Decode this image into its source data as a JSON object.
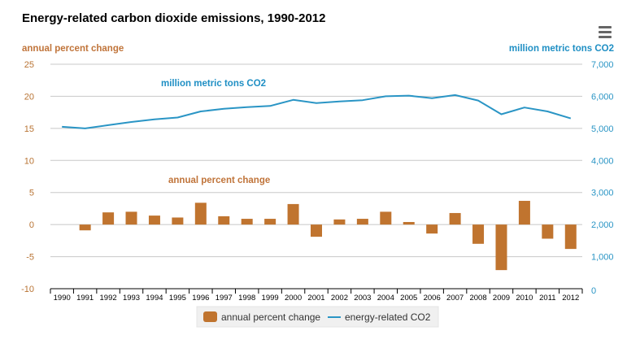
{
  "chart_data": {
    "type": "bar+line",
    "title": "Energy-related carbon dioxide emissions, 1990-2012",
    "categories": [
      "1990",
      "1991",
      "1992",
      "1993",
      "1994",
      "1995",
      "1996",
      "1997",
      "1998",
      "1999",
      "2000",
      "2001",
      "2002",
      "2003",
      "2004",
      "2005",
      "2006",
      "2007",
      "2008",
      "2009",
      "2010",
      "2011",
      "2012"
    ],
    "left_axis": {
      "label": "annual percent change",
      "ylim": [
        -10,
        25
      ],
      "ticks": [
        "-10",
        "-5",
        "0",
        "5",
        "10",
        "15",
        "20",
        "25"
      ]
    },
    "right_axis": {
      "label": "million metric tons CO2",
      "ylim": [
        0,
        7000
      ],
      "ticks": [
        "0",
        "1,000",
        "2,000",
        "3,000",
        "4,000",
        "5,000",
        "6,000",
        "7,000"
      ]
    },
    "series": [
      {
        "name": "annual percent change",
        "type": "bar",
        "axis": "left",
        "color": "#c0742f",
        "values": [
          null,
          -0.9,
          1.9,
          2.0,
          1.4,
          1.1,
          3.4,
          1.3,
          0.9,
          0.9,
          3.2,
          -1.9,
          0.8,
          0.9,
          2.0,
          0.4,
          -1.4,
          1.8,
          -3.0,
          -7.1,
          3.7,
          -2.2,
          -3.8
        ]
      },
      {
        "name": "energy-related CO2",
        "type": "line",
        "axis": "right",
        "color": "#2a95c5",
        "values": [
          5050,
          5000,
          5100,
          5200,
          5280,
          5340,
          5530,
          5610,
          5660,
          5700,
          5890,
          5790,
          5840,
          5880,
          6000,
          6020,
          5940,
          6040,
          5870,
          5440,
          5650,
          5530,
          5310
        ]
      }
    ],
    "annotations": [
      "million metric tons CO2",
      "annual percent change"
    ],
    "grid": true,
    "legend": "bottom"
  },
  "menu_icon": "hamburger-menu-icon"
}
